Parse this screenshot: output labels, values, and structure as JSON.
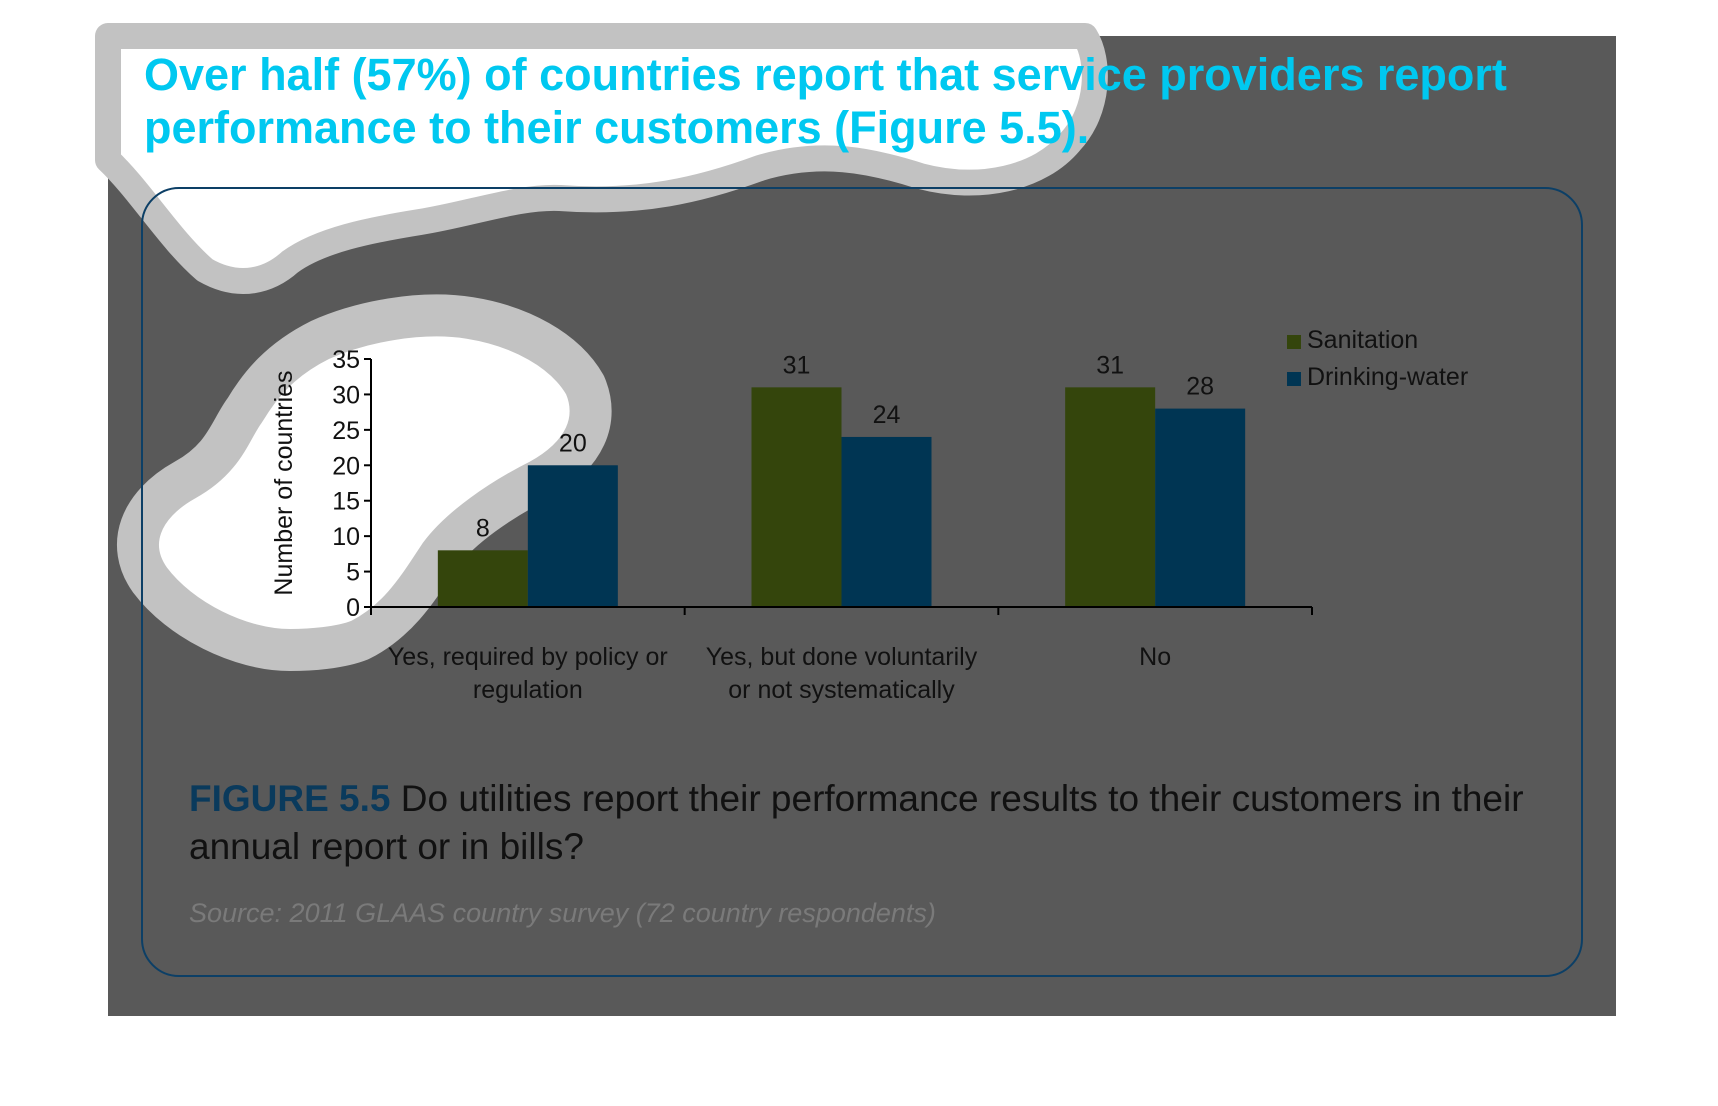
{
  "headline": "Over half (57%) of countries report that service providers report performance to their customers (Figure 5.5).",
  "figure": {
    "label": "FIGURE 5.5",
    "caption": " Do utilities report their performance results to their customers in their annual report or in bills?",
    "source": "Source: 2011 GLAAS country survey (72 country respondents)"
  },
  "colors": {
    "sanitation": "#34450c",
    "drinking_water": "#003553",
    "panel": "#595959",
    "headline": "#00c8f0",
    "frame": "#0c3f66"
  },
  "chart_data": {
    "type": "bar",
    "categories": [
      [
        "Yes, required by policy or",
        "regulation"
      ],
      [
        "Yes, but done voluntarily",
        "or not systematically"
      ],
      [
        "No"
      ]
    ],
    "series": [
      {
        "name": "Sanitation",
        "values": [
          8,
          31,
          31
        ]
      },
      {
        "name": "Drinking-water",
        "values": [
          20,
          24,
          28
        ]
      }
    ],
    "ylabel": "Number of countries",
    "ylim": [
      0,
      35
    ],
    "yticks": [
      0,
      5,
      10,
      15,
      20,
      25,
      30,
      35
    ],
    "grid": false,
    "legend_position": "top-right"
  }
}
